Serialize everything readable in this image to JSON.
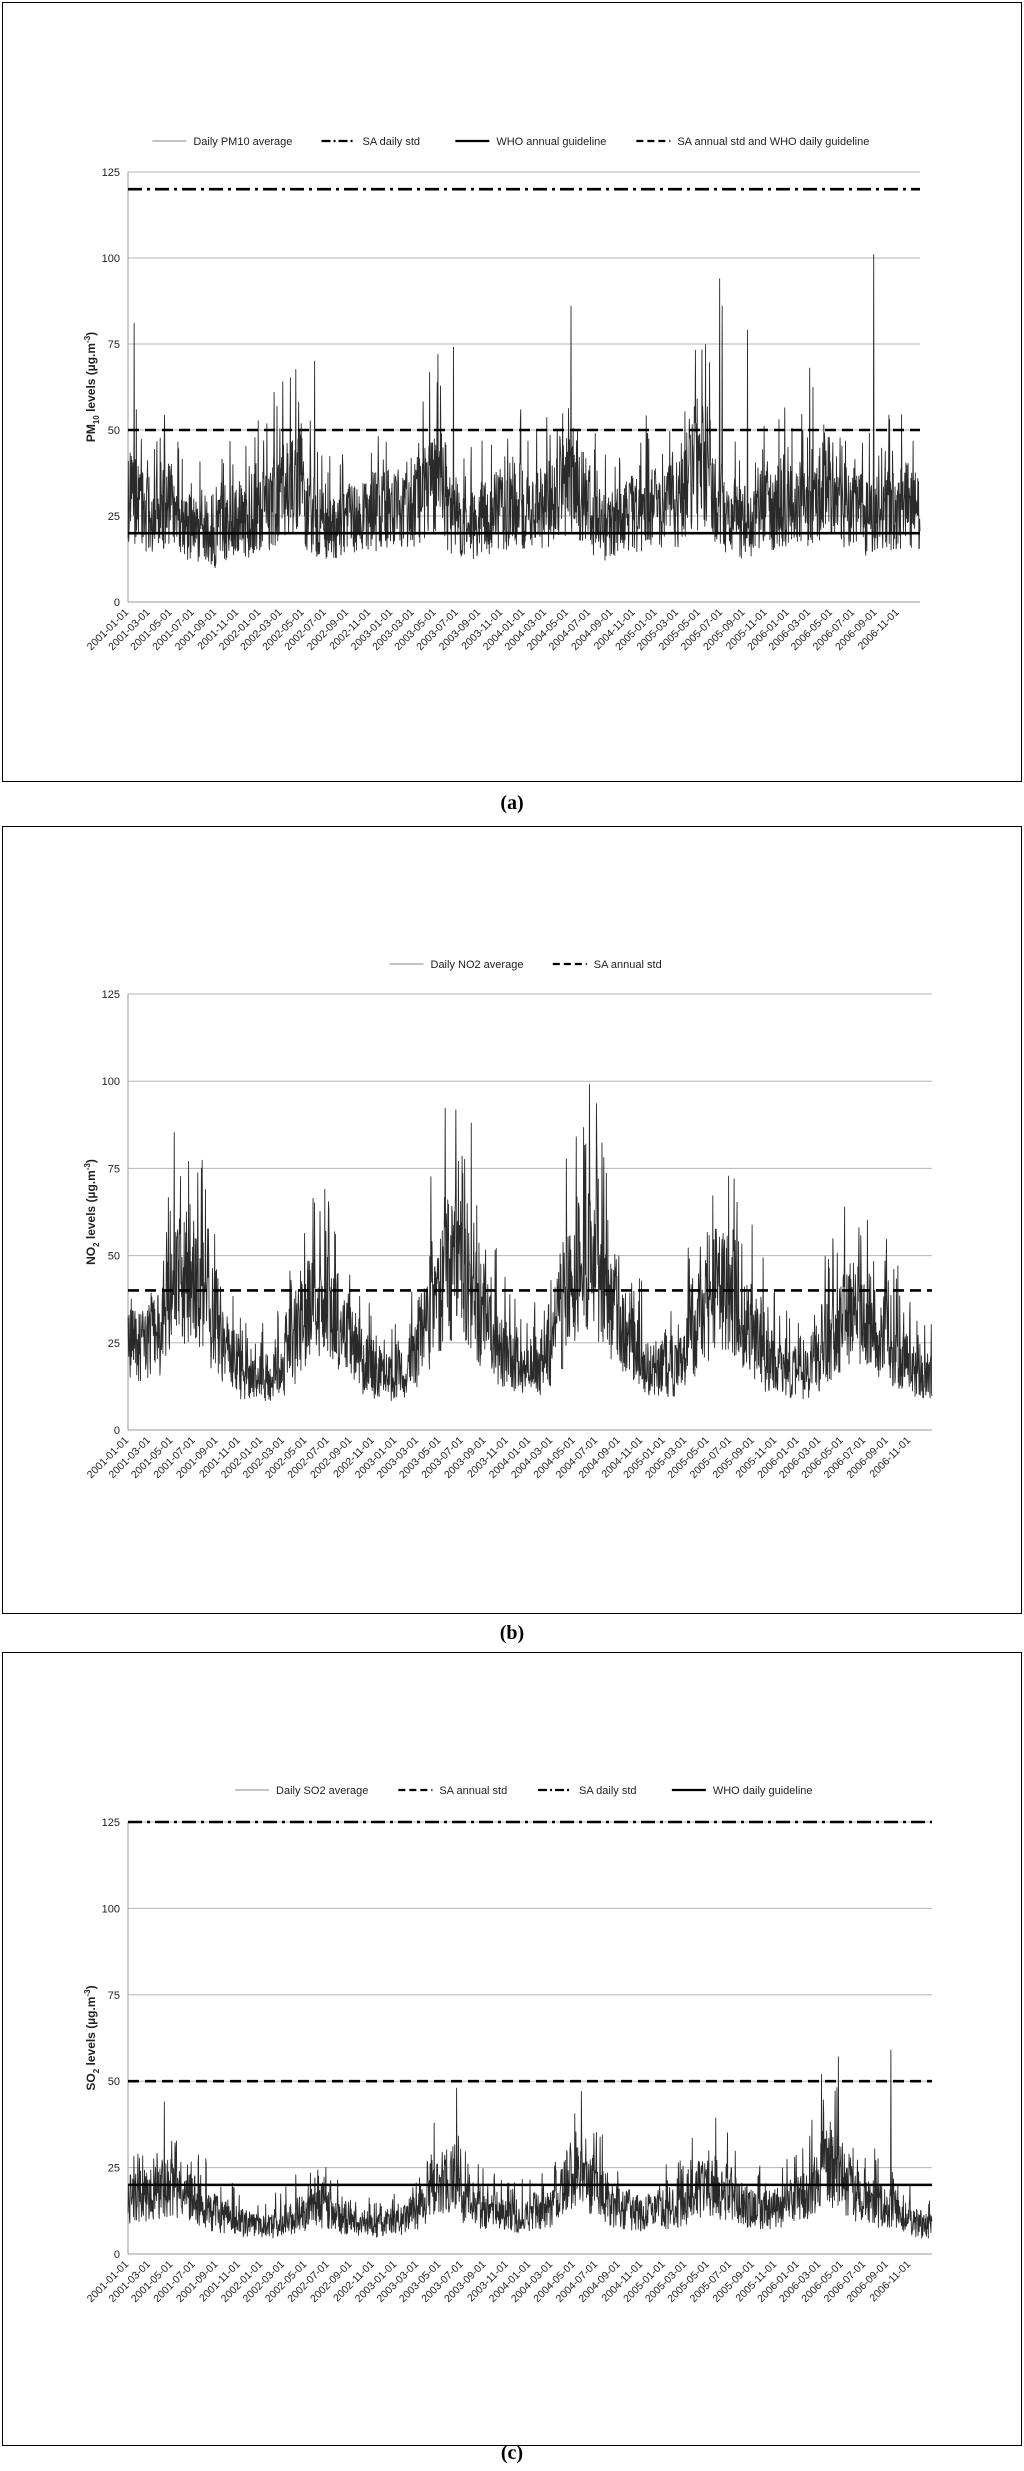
{
  "x_tick_labels": [
    "2001-01-01",
    "2001-03-01",
    "2001-05-01",
    "2001-07-01",
    "2001-09-01",
    "2001-11-01",
    "2002-01-01",
    "2002-03-01",
    "2002-05-01",
    "2002-07-01",
    "2002-09-01",
    "2002-11-01",
    "2003-01-01",
    "2003-03-01",
    "2003-05-01",
    "2003-07-01",
    "2003-09-01",
    "2003-11-01",
    "2004-01-01",
    "2004-03-01",
    "2004-05-01",
    "2004-07-01",
    "2004-09-01",
    "2004-11-01",
    "2005-01-01",
    "2005-03-01",
    "2005-05-01",
    "2005-07-01",
    "2005-09-01",
    "2005-11-01",
    "2006-01-01",
    "2006-03-01",
    "2006-05-01",
    "2006-07-01",
    "2006-09-01",
    "2006-11-01"
  ],
  "chart_data": [
    {
      "panel_label": "(a)",
      "type": "line",
      "title": "",
      "xlabel": "",
      "ylabel": "PM",
      "ylabel_sub": "10",
      "ylabel_rest": " levels (µg.m",
      "ylabel_sup": "-3",
      "ylabel_end": ")",
      "ylim": [
        0,
        125
      ],
      "yticks": [
        0,
        25,
        50,
        75,
        100,
        125
      ],
      "legend": [
        {
          "label": "Daily PM10 average",
          "style": "thin"
        },
        {
          "label": "SA daily std",
          "style": "dashdot"
        },
        {
          "label": "WHO annual guideline",
          "style": "solid"
        },
        {
          "label": "SA annual std and WHO daily guideline",
          "style": "dashed"
        }
      ],
      "reference_lines": [
        {
          "name": "SA daily std",
          "value": 120,
          "style": "dashdot"
        },
        {
          "name": "WHO annual guideline",
          "value": 20,
          "style": "solid"
        },
        {
          "name": "SA annual std and WHO daily guideline",
          "value": 50,
          "style": "dashed"
        }
      ],
      "series": [
        {
          "name": "Daily PM10 average",
          "x_start": "2001-01-01",
          "x_end": "2006-12-31",
          "monthly_mean": [
            30,
            26,
            24,
            28,
            25,
            22,
            20,
            18,
            22,
            24,
            23,
            26,
            27,
            30,
            35,
            33,
            26,
            24,
            21,
            22,
            24,
            25,
            26,
            27,
            27,
            29,
            31,
            33,
            32,
            25,
            22,
            22,
            24,
            26,
            25,
            28,
            26,
            27,
            29,
            34,
            36,
            31,
            24,
            22,
            23,
            26,
            25,
            27,
            27,
            29,
            32,
            37,
            40,
            30,
            25,
            23,
            24,
            27,
            27,
            28,
            28,
            29,
            31,
            34,
            33,
            28,
            26,
            24,
            26,
            27,
            28,
            26
          ],
          "peaks": [
            {
              "x": "2001-01-18",
              "y": 81
            },
            {
              "x": "2002-03-05",
              "y": 64
            },
            {
              "x": "2002-06-01",
              "y": 70
            },
            {
              "x": "2003-05-08",
              "y": 72
            },
            {
              "x": "2003-06-20",
              "y": 74
            },
            {
              "x": "2004-05-10",
              "y": 86
            },
            {
              "x": "2005-06-25",
              "y": 94
            },
            {
              "x": "2005-07-02",
              "y": 86
            },
            {
              "x": "2005-09-10",
              "y": 79
            },
            {
              "x": "2006-03-01",
              "y": 68
            },
            {
              "x": "2006-08-25",
              "y": 101
            }
          ]
        }
      ]
    },
    {
      "panel_label": "(b)",
      "type": "line",
      "title": "",
      "xlabel": "",
      "ylabel": "NO",
      "ylabel_sub": "2",
      "ylabel_rest": " levels (µg.m",
      "ylabel_sup": "-3",
      "ylabel_end": ")",
      "ylim": [
        0,
        125
      ],
      "yticks": [
        0,
        25,
        50,
        75,
        100,
        125
      ],
      "legend": [
        {
          "label": "Daily NO2 average",
          "style": "thin"
        },
        {
          "label": "SA annual std",
          "style": "dashed"
        }
      ],
      "reference_lines": [
        {
          "name": "SA annual std",
          "value": 40,
          "style": "dashed"
        }
      ],
      "series": [
        {
          "name": "Daily NO2 average",
          "x_start": "2001-01-01",
          "x_end": "2006-12-31",
          "monthly_mean": [
            24,
            25,
            28,
            34,
            42,
            45,
            40,
            32,
            25,
            20,
            16,
            14,
            15,
            18,
            24,
            30,
            34,
            35,
            31,
            27,
            22,
            18,
            16,
            15,
            17,
            21,
            28,
            38,
            46,
            48,
            42,
            33,
            27,
            22,
            19,
            18,
            18,
            22,
            30,
            40,
            48,
            50,
            44,
            35,
            27,
            22,
            18,
            17,
            17,
            20,
            27,
            34,
            40,
            42,
            38,
            30,
            25,
            20,
            17,
            16,
            16,
            20,
            25,
            30,
            33,
            34,
            31,
            27,
            23,
            20,
            17,
            15
          ],
          "peaks": [
            {
              "x": "2001-06-15",
              "y": 77
            },
            {
              "x": "2001-07-20",
              "y": 75
            },
            {
              "x": "2003-06-20",
              "y": 77
            },
            {
              "x": "2003-07-25",
              "y": 88
            },
            {
              "x": "2004-07-01",
              "y": 81
            },
            {
              "x": "2005-07-10",
              "y": 72
            },
            {
              "x": "2006-06-15",
              "y": 58
            }
          ]
        }
      ]
    },
    {
      "panel_label": "(c)",
      "type": "line",
      "title": "",
      "xlabel": "",
      "ylabel": "SO",
      "ylabel_sub": "2",
      "ylabel_rest": " levels (µg.m",
      "ylabel_sup": "-3",
      "ylabel_end": ")",
      "ylim": [
        0,
        125
      ],
      "yticks": [
        0,
        25,
        50,
        75,
        100,
        125
      ],
      "legend": [
        {
          "label": "Daily SO2 average",
          "style": "thin"
        },
        {
          "label": "SA annual std",
          "style": "dashed"
        },
        {
          "label": "SA daily std",
          "style": "dashdot"
        },
        {
          "label": "WHO daily guideline",
          "style": "solid"
        }
      ],
      "reference_lines": [
        {
          "name": "SA daily std",
          "value": 125,
          "style": "dashdot"
        },
        {
          "name": "SA annual std",
          "value": 50,
          "style": "dashed"
        },
        {
          "name": "WHO daily guideline",
          "value": 20,
          "style": "solid"
        }
      ],
      "series": [
        {
          "name": "Daily SO2 average",
          "x_start": "2001-01-01",
          "x_end": "2006-12-31",
          "monthly_mean": [
            16,
            17,
            18,
            19,
            18,
            16,
            14,
            12,
            11,
            10,
            9,
            8,
            8,
            9,
            10,
            12,
            13,
            13,
            11,
            10,
            9,
            8,
            8,
            9,
            10,
            12,
            16,
            20,
            21,
            19,
            16,
            13,
            12,
            11,
            11,
            11,
            12,
            14,
            18,
            22,
            23,
            20,
            17,
            14,
            13,
            12,
            12,
            13,
            13,
            14,
            17,
            19,
            20,
            18,
            16,
            14,
            13,
            13,
            14,
            15,
            17,
            20,
            25,
            24,
            20,
            17,
            15,
            14,
            13,
            11,
            9,
            8
          ],
          "peaks": [
            {
              "x": "2001-04-10",
              "y": 44
            },
            {
              "x": "2003-06-15",
              "y": 48
            },
            {
              "x": "2004-05-20",
              "y": 47
            },
            {
              "x": "2006-03-05",
              "y": 52
            },
            {
              "x": "2006-04-20",
              "y": 57
            },
            {
              "x": "2006-09-10",
              "y": 59
            }
          ]
        }
      ]
    }
  ]
}
